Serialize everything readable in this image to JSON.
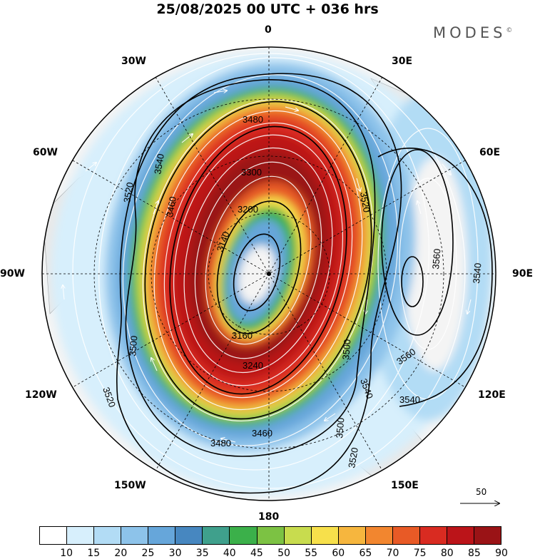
{
  "header": {
    "title": "25/08/2025  00 UTC  + 036 hrs",
    "brand": "MODES",
    "brand_mark": "©"
  },
  "map": {
    "longitude_labels": {
      "n": "0",
      "e30": "30E",
      "e60": "60E",
      "e90": "90E",
      "e120": "120E",
      "e150": "150E",
      "s": "180",
      "w150": "150W",
      "w120": "120W",
      "w90": "90W",
      "w60": "60W",
      "w30": "30W"
    },
    "contour_labels": {
      "c3140": "3140",
      "c3160": "3160",
      "c3200": "3200",
      "c3240": "3240",
      "c3300": "3300",
      "c3460a": "3460",
      "c3460b": "3460",
      "c3480a": "3480",
      "c3480b": "3480",
      "c3500a": "3500",
      "c3500b": "3500",
      "c3500c": "3500",
      "c3520a": "3520",
      "c3520b": "3520",
      "c3520c": "3520",
      "c3520d": "3520",
      "c3540a": "3540",
      "c3540b": "3540",
      "c3540c": "3540",
      "c3540d": "3540",
      "c3560a": "3560",
      "c3560b": "3560"
    },
    "reference_vector": "50"
  },
  "colorbar": {
    "levels": [
      "10",
      "15",
      "20",
      "25",
      "30",
      "35",
      "40",
      "45",
      "50",
      "55",
      "60",
      "65",
      "70",
      "75",
      "80",
      "85",
      "90"
    ],
    "colors": [
      "#ffffff",
      "#d7effc",
      "#b2dcf5",
      "#8dc3ea",
      "#66a6da",
      "#4787c0",
      "#3fa08c",
      "#3bb04a",
      "#7cc243",
      "#c8dc4e",
      "#f7e04b",
      "#f6b63e",
      "#f2862f",
      "#e85a26",
      "#d92b21",
      "#bb1419",
      "#9a1316"
    ]
  }
}
